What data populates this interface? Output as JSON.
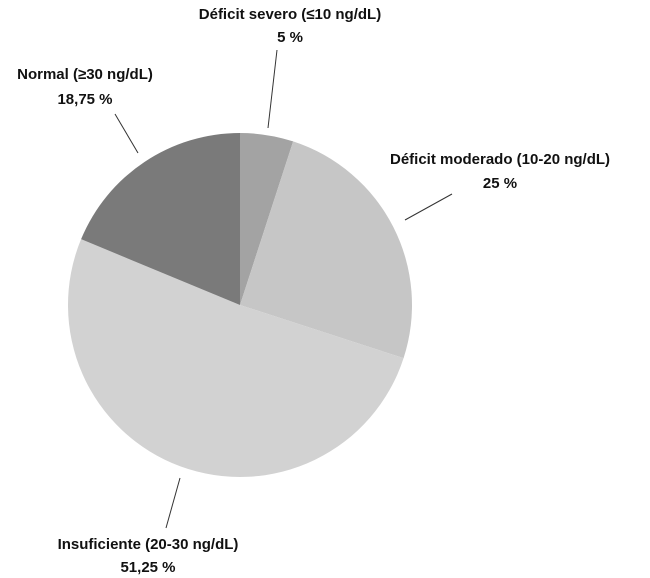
{
  "chart_data": {
    "type": "pie",
    "categories": [
      "Déficit severo (≤10 ng/dL)",
      "Déficit moderado (10-20 ng/dL)",
      "Insuficiente (20-30 ng/dL)",
      "Normal (≥30 ng/dL)"
    ],
    "values": [
      5,
      25,
      51.25,
      18.75
    ],
    "value_labels": [
      "5 %",
      "25 %",
      "51,25 %",
      "18,75 %"
    ],
    "colors": [
      "#a3a3a3",
      "#c6c6c6",
      "#d2d2d2",
      "#7a7a7a"
    ]
  }
}
